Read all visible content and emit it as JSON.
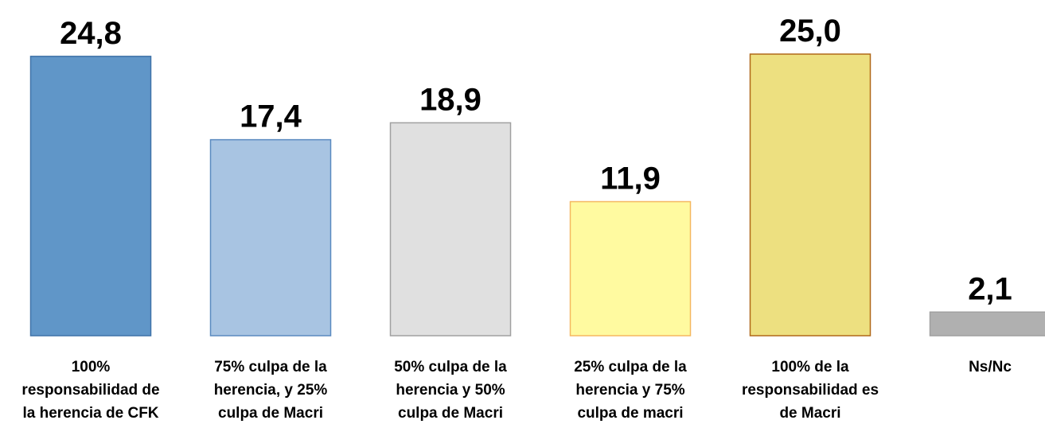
{
  "chart_data": {
    "type": "bar",
    "categories": [
      "100% responsabilidad de la herencia de CFK",
      "75% culpa de la herencia, y 25% culpa de Macri",
      "50% culpa de la herencia y 50% culpa de Macri",
      "25% culpa de la herencia y 75% culpa de macri",
      "100% de la responsabilidad es de Macri",
      "Ns/Nc"
    ],
    "values": [
      24.8,
      17.4,
      18.9,
      11.9,
      25.0,
      2.1
    ],
    "value_labels": [
      "24,8",
      "17,4",
      "18,9",
      "11,9",
      "25,0",
      "2,1"
    ],
    "colors": [
      "#6096c8",
      "#a8c4e2",
      "#e0e0e0",
      "#fffaa0",
      "#ede080",
      "#b0b0b0"
    ],
    "edge_colors": [
      "#3f72a8",
      "#5a8ac0",
      "#a0a0a0",
      "#f5b860",
      "#b06818",
      "#a0a0a0"
    ],
    "ylim": [
      0,
      25
    ]
  }
}
